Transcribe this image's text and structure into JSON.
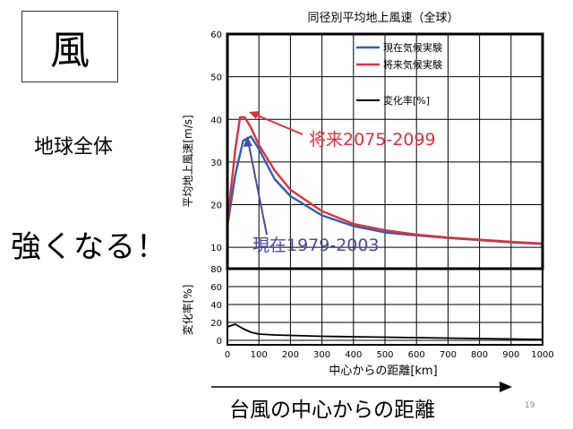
{
  "slide": {
    "kanji": "風",
    "scope": "地球全体",
    "headline": "強くなる！",
    "bottom_caption": "台風の中心からの距離",
    "slide_number": "19"
  },
  "chart_data": {
    "type": "line",
    "title": "同径別平均地上風速（全球）",
    "xlabel": "中心からの距離[km]",
    "x_ticks": [
      0,
      100,
      200,
      300,
      400,
      500,
      600,
      700,
      800,
      900,
      1000
    ],
    "xlim": [
      0,
      1000
    ],
    "legend_position": "top-right",
    "grid": true,
    "panels": [
      {
        "ylabel": "平均地上風速[m/s]",
        "ylim": [
          5,
          60
        ],
        "y_ticks": [
          10,
          20,
          30,
          40,
          50,
          60
        ],
        "series": [
          {
            "name": "現在気候実験",
            "color": "#2b5fb4",
            "x": [
              0,
              25,
              50,
              75,
              100,
              150,
              200,
              300,
              400,
              500,
              600,
              700,
              800,
              900,
              1000
            ],
            "y": [
              15,
              27,
              35,
              36,
              33,
              26,
              22,
              17.5,
              15,
              13.5,
              12.8,
              12.2,
              11.7,
              11.2,
              10.8
            ]
          },
          {
            "name": "将来気候実験",
            "color": "#e0303c",
            "x": [
              0,
              25,
              40,
              55,
              75,
              100,
              150,
              200,
              300,
              400,
              500,
              600,
              700,
              800,
              900,
              1000
            ],
            "y": [
              16,
              33,
              40.5,
              40.5,
              38,
              34,
              28,
              23.5,
              18.5,
              15.5,
              14,
              13,
              12.3,
              11.8,
              11.3,
              10.9
            ]
          }
        ],
        "legend_extra": {
          "name": "変化率[%]",
          "color": "#000000"
        }
      },
      {
        "ylabel": "変化率[%]",
        "ylim": [
          -5,
          80
        ],
        "y_ticks": [
          0,
          20,
          40,
          60,
          80
        ],
        "series": [
          {
            "name": "変化率[%]",
            "color": "#000000",
            "x": [
              0,
              25,
              50,
              75,
              100,
              150,
              200,
              300,
              400,
              500,
              600,
              700,
              800,
              900,
              1000
            ],
            "y": [
              15,
              18,
              13,
              9,
              7,
              6,
              5.5,
              4.5,
              4,
              3.5,
              3,
              2.5,
              2,
              1.5,
              1
            ]
          }
        ]
      }
    ],
    "annotations": [
      {
        "text": "将来2075-2099",
        "color": "#e0303c",
        "target_series": "将来気候実験",
        "x": 55,
        "y": 40.5
      },
      {
        "text": "現在1979-2003",
        "color": "#4a4aa0",
        "target_series": "現在気候実験",
        "x": 75,
        "y": 33.5
      }
    ]
  }
}
